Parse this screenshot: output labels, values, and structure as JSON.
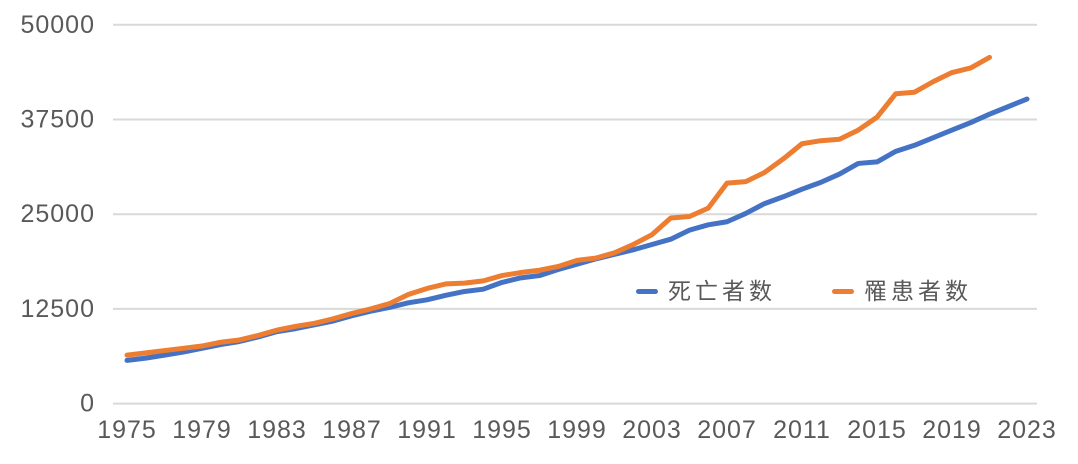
{
  "chart_data": {
    "type": "line",
    "title": "",
    "xlabel": "",
    "ylabel": "",
    "background_color": "#FFFFFF",
    "grid": "horizontal",
    "grid_color": "#D9D9D9",
    "axis_text_color": "#595959",
    "ylim": [
      0,
      50000
    ],
    "y_ticks": [
      0,
      12500,
      25000,
      37500,
      50000
    ],
    "y_tick_labels": [
      "0",
      "12500",
      "25000",
      "37500",
      "50000"
    ],
    "x_tick_labels": [
      "1975",
      "1979",
      "1983",
      "1987",
      "1991",
      "1995",
      "1999",
      "2003",
      "2007",
      "2011",
      "2015",
      "2019",
      "2023"
    ],
    "x": [
      1975,
      1976,
      1977,
      1978,
      1979,
      1980,
      1981,
      1982,
      1983,
      1984,
      1985,
      1986,
      1987,
      1988,
      1989,
      1990,
      1991,
      1992,
      1993,
      1994,
      1995,
      1996,
      1997,
      1998,
      1999,
      2000,
      2001,
      2002,
      2003,
      2004,
      2005,
      2006,
      2007,
      2008,
      2009,
      2010,
      2011,
      2012,
      2013,
      2014,
      2015,
      2016,
      2017,
      2018,
      2019,
      2020,
      2021,
      2022,
      2023
    ],
    "series": [
      {
        "name": "死亡者数",
        "color": "#4472C4",
        "values": [
          5700,
          6000,
          6400,
          6800,
          7300,
          7800,
          8200,
          8800,
          9500,
          9900,
          10400,
          10900,
          11600,
          12200,
          12700,
          13300,
          13700,
          14300,
          14800,
          15100,
          16000,
          16600,
          16900,
          17700,
          18400,
          19100,
          19700,
          20300,
          21000,
          21700,
          22900,
          23600,
          24000,
          25100,
          26400,
          27300,
          28300,
          29200,
          30300,
          31700,
          31900,
          33300,
          34100,
          35100,
          36100,
          37100,
          38200,
          39200,
          40200
        ]
      },
      {
        "name": "罹患者数",
        "color": "#ED7D31",
        "values": [
          6400,
          6700,
          7000,
          7300,
          7600,
          8100,
          8400,
          9000,
          9700,
          10200,
          10600,
          11200,
          11900,
          12500,
          13200,
          14400,
          15200,
          15800,
          15900,
          16200,
          16900,
          17300,
          17600,
          18100,
          18900,
          19200,
          19900,
          21000,
          22300,
          24500,
          24700,
          25800,
          29100,
          29300,
          30500,
          32300,
          34300,
          34700,
          34900,
          36100,
          37800,
          40900,
          41100,
          42500,
          43700,
          44300,
          45700,
          null,
          null
        ]
      }
    ],
    "legend_position": "inside-center-right"
  }
}
